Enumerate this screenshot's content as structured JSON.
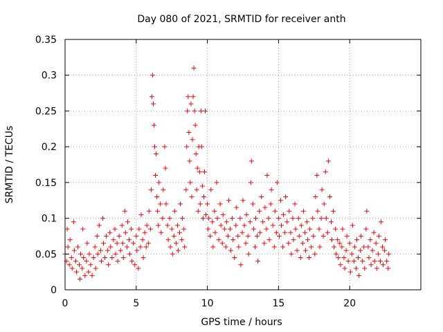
{
  "chart_data": {
    "type": "scatter",
    "title": "Day 080 of 2021, SRMTID for receiver anth",
    "xlabel": "GPS time / hours",
    "ylabel": "SRMTID / TECUs",
    "xlim": [
      0,
      25
    ],
    "ylim": [
      0,
      0.35
    ],
    "x_ticks": [
      0,
      5,
      10,
      15,
      20
    ],
    "y_ticks": [
      0,
      0.05,
      0.1,
      0.15,
      0.2,
      0.25,
      0.3,
      0.35
    ],
    "x_tick_labels": [
      "0",
      "5",
      "10",
      "15",
      "20"
    ],
    "y_tick_labels": [
      "0",
      "0.05",
      "0.1",
      "0.15",
      "0.2",
      "0.25",
      "0.3",
      "0.35"
    ],
    "grid": true,
    "marker": "+",
    "color": "#ff0000",
    "series": [
      {
        "name": "SRMTID",
        "points": [
          [
            0.0,
            0.05
          ],
          [
            0.1,
            0.04
          ],
          [
            0.15,
            0.085
          ],
          [
            0.2,
            0.06
          ],
          [
            0.3,
            0.035
          ],
          [
            0.35,
            0.07
          ],
          [
            0.45,
            0.045
          ],
          [
            0.5,
            0.03
          ],
          [
            0.6,
            0.095
          ],
          [
            0.65,
            0.055
          ],
          [
            0.75,
            0.04
          ],
          [
            0.8,
            0.025
          ],
          [
            0.9,
            0.06
          ],
          [
            1.0,
            0.035
          ],
          [
            1.05,
            0.015
          ],
          [
            1.1,
            0.05
          ],
          [
            1.2,
            0.03
          ],
          [
            1.25,
            0.085
          ],
          [
            1.3,
            0.045
          ],
          [
            1.4,
            0.02
          ],
          [
            1.5,
            0.04
          ],
          [
            1.55,
            0.065
          ],
          [
            1.65,
            0.025
          ],
          [
            1.7,
            0.05
          ],
          [
            1.8,
            0.035
          ],
          [
            1.9,
            0.02
          ],
          [
            2.0,
            0.045
          ],
          [
            2.1,
            0.06
          ],
          [
            2.15,
            0.03
          ],
          [
            2.25,
            0.075
          ],
          [
            2.3,
            0.05
          ],
          [
            2.4,
            0.09
          ],
          [
            2.5,
            0.055
          ],
          [
            2.55,
            0.04
          ],
          [
            2.65,
            0.1
          ],
          [
            2.7,
            0.065
          ],
          [
            2.8,
            0.045
          ],
          [
            2.9,
            0.075
          ],
          [
            3.0,
            0.055
          ],
          [
            3.05,
            0.035
          ],
          [
            3.15,
            0.08
          ],
          [
            3.2,
            0.06
          ],
          [
            3.3,
            0.045
          ],
          [
            3.4,
            0.07
          ],
          [
            3.5,
            0.085
          ],
          [
            3.55,
            0.05
          ],
          [
            3.65,
            0.065
          ],
          [
            3.7,
            0.04
          ],
          [
            3.8,
            0.075
          ],
          [
            3.9,
            0.055
          ],
          [
            4.0,
            0.09
          ],
          [
            4.05,
            0.065
          ],
          [
            4.1,
            0.045
          ],
          [
            4.2,
            0.11
          ],
          [
            4.25,
            0.08
          ],
          [
            4.35,
            0.06
          ],
          [
            4.4,
            0.095
          ],
          [
            4.5,
            0.07
          ],
          [
            4.55,
            0.05
          ],
          [
            4.65,
            0.085
          ],
          [
            4.7,
            0.04
          ],
          [
            4.8,
            0.065
          ],
          [
            4.9,
            0.035
          ],
          [
            5.0,
            0.075
          ],
          [
            5.05,
            0.055
          ],
          [
            5.15,
            0.03
          ],
          [
            5.2,
            0.085
          ],
          [
            5.3,
            0.06
          ],
          [
            5.35,
            0.105
          ],
          [
            5.45,
            0.07
          ],
          [
            5.5,
            0.045
          ],
          [
            5.6,
            0.08
          ],
          [
            5.7,
            0.06
          ],
          [
            5.75,
            0.09
          ],
          [
            5.85,
            0.065
          ],
          [
            5.9,
            0.11
          ],
          [
            6.0,
            0.085
          ],
          [
            6.05,
            0.14
          ],
          [
            6.1,
            0.27
          ],
          [
            6.15,
            0.3
          ],
          [
            6.2,
            0.26
          ],
          [
            6.25,
            0.23
          ],
          [
            6.3,
            0.2
          ],
          [
            6.35,
            0.16
          ],
          [
            6.4,
            0.19
          ],
          [
            6.45,
            0.13
          ],
          [
            6.5,
            0.11
          ],
          [
            6.55,
            0.09
          ],
          [
            6.6,
            0.15
          ],
          [
            6.7,
            0.12
          ],
          [
            6.75,
            0.08
          ],
          [
            6.85,
            0.1
          ],
          [
            6.9,
            0.14
          ],
          [
            7.0,
            0.2
          ],
          [
            7.05,
            0.17
          ],
          [
            7.1,
            0.12
          ],
          [
            7.2,
            0.09
          ],
          [
            7.25,
            0.07
          ],
          [
            7.35,
            0.1
          ],
          [
            7.4,
            0.06
          ],
          [
            7.5,
            0.085
          ],
          [
            7.55,
            0.05
          ],
          [
            7.65,
            0.075
          ],
          [
            7.7,
            0.11
          ],
          [
            7.8,
            0.065
          ],
          [
            7.9,
            0.09
          ],
          [
            7.95,
            0.055
          ],
          [
            8.05,
            0.08
          ],
          [
            8.1,
            0.12
          ],
          [
            8.2,
            0.07
          ],
          [
            8.25,
            0.1
          ],
          [
            8.35,
            0.085
          ],
          [
            8.4,
            0.06
          ],
          [
            8.5,
            0.14
          ],
          [
            8.55,
            0.2
          ],
          [
            8.6,
            0.25
          ],
          [
            8.65,
            0.27
          ],
          [
            8.7,
            0.22
          ],
          [
            8.75,
            0.18
          ],
          [
            8.8,
            0.15
          ],
          [
            8.85,
            0.26
          ],
          [
            8.9,
            0.13
          ],
          [
            8.95,
            0.21
          ],
          [
            9.0,
            0.27
          ],
          [
            9.05,
            0.31
          ],
          [
            9.1,
            0.25
          ],
          [
            9.15,
            0.23
          ],
          [
            9.2,
            0.19
          ],
          [
            9.25,
            0.14
          ],
          [
            9.3,
            0.17
          ],
          [
            9.35,
            0.11
          ],
          [
            9.4,
            0.2
          ],
          [
            9.45,
            0.165
          ],
          [
            9.5,
            0.12
          ],
          [
            9.55,
            0.25
          ],
          [
            9.6,
            0.2
          ],
          [
            9.65,
            0.145
          ],
          [
            9.7,
            0.1
          ],
          [
            9.75,
            0.13
          ],
          [
            9.8,
            0.165
          ],
          [
            9.85,
            0.25
          ],
          [
            9.9,
            0.105
          ],
          [
            10.0,
            0.12
          ],
          [
            10.05,
            0.085
          ],
          [
            10.1,
            0.1
          ],
          [
            10.2,
            0.075
          ],
          [
            10.25,
            0.14
          ],
          [
            10.35,
            0.095
          ],
          [
            10.4,
            0.06
          ],
          [
            10.5,
            0.11
          ],
          [
            10.55,
            0.08
          ],
          [
            10.65,
            0.15
          ],
          [
            10.7,
            0.1
          ],
          [
            10.8,
            0.07
          ],
          [
            10.9,
            0.12
          ],
          [
            10.95,
            0.09
          ],
          [
            11.05,
            0.065
          ],
          [
            11.1,
            0.105
          ],
          [
            11.2,
            0.085
          ],
          [
            11.3,
            0.06
          ],
          [
            11.35,
            0.095
          ],
          [
            11.45,
            0.075
          ],
          [
            11.5,
            0.125
          ],
          [
            11.6,
            0.085
          ],
          [
            11.65,
            0.055
          ],
          [
            11.75,
            0.1
          ],
          [
            11.8,
            0.07
          ],
          [
            11.9,
            0.045
          ],
          [
            12.0,
            0.09
          ],
          [
            12.05,
            0.115
          ],
          [
            12.15,
            0.075
          ],
          [
            12.2,
            0.06
          ],
          [
            12.3,
            0.1
          ],
          [
            12.35,
            0.035
          ],
          [
            12.45,
            0.08
          ],
          [
            12.5,
            0.125
          ],
          [
            12.6,
            0.09
          ],
          [
            12.7,
            0.065
          ],
          [
            12.75,
            0.105
          ],
          [
            12.85,
            0.075
          ],
          [
            12.9,
            0.05
          ],
          [
            13.0,
            0.095
          ],
          [
            13.05,
            0.15
          ],
          [
            13.1,
            0.18
          ],
          [
            13.2,
            0.12
          ],
          [
            13.25,
            0.085
          ],
          [
            13.35,
            0.06
          ],
          [
            13.4,
            0.1
          ],
          [
            13.5,
            0.075
          ],
          [
            13.55,
            0.04
          ],
          [
            13.65,
            0.11
          ],
          [
            13.7,
            0.08
          ],
          [
            13.8,
            0.13
          ],
          [
            13.9,
            0.095
          ],
          [
            14.0,
            0.065
          ],
          [
            14.05,
            0.115
          ],
          [
            14.15,
            0.085
          ],
          [
            14.2,
            0.16
          ],
          [
            14.3,
            0.1
          ],
          [
            14.35,
            0.07
          ],
          [
            14.45,
            0.12
          ],
          [
            14.5,
            0.14
          ],
          [
            14.6,
            0.09
          ],
          [
            14.7,
            0.06
          ],
          [
            14.75,
            0.11
          ],
          [
            14.85,
            0.08
          ],
          [
            14.9,
            0.15
          ],
          [
            15.0,
            0.1
          ],
          [
            15.05,
            0.075
          ],
          [
            15.15,
            0.125
          ],
          [
            15.2,
            0.09
          ],
          [
            15.3,
            0.06
          ],
          [
            15.35,
            0.105
          ],
          [
            15.45,
            0.08
          ],
          [
            15.5,
            0.13
          ],
          [
            15.6,
            0.095
          ],
          [
            15.7,
            0.065
          ],
          [
            15.75,
            0.11
          ],
          [
            15.85,
            0.08
          ],
          [
            15.9,
            0.05
          ],
          [
            16.0,
            0.1
          ],
          [
            16.05,
            0.07
          ],
          [
            16.15,
            0.12
          ],
          [
            16.2,
            0.085
          ],
          [
            16.3,
            0.055
          ],
          [
            16.4,
            0.1
          ],
          [
            16.45,
            0.075
          ],
          [
            16.55,
            0.045
          ],
          [
            16.6,
            0.09
          ],
          [
            16.7,
            0.065
          ],
          [
            16.75,
            0.11
          ],
          [
            16.85,
            0.08
          ],
          [
            16.9,
            0.055
          ],
          [
            17.0,
            0.095
          ],
          [
            17.05,
            0.07
          ],
          [
            17.15,
            0.045
          ],
          [
            17.2,
            0.085
          ],
          [
            17.3,
            0.06
          ],
          [
            17.4,
            0.1
          ],
          [
            17.45,
            0.075
          ],
          [
            17.55,
            0.05
          ],
          [
            17.6,
            0.13
          ],
          [
            17.7,
            0.16
          ],
          [
            17.75,
            0.11
          ],
          [
            17.85,
            0.085
          ],
          [
            17.9,
            0.06
          ],
          [
            18.0,
            0.1
          ],
          [
            18.05,
            0.14
          ],
          [
            18.15,
            0.075
          ],
          [
            18.2,
            0.12
          ],
          [
            18.3,
            0.165
          ],
          [
            18.35,
            0.1
          ],
          [
            18.45,
            0.08
          ],
          [
            18.5,
            0.18
          ],
          [
            18.6,
            0.13
          ],
          [
            18.7,
            0.095
          ],
          [
            18.75,
            0.07
          ],
          [
            18.85,
            0.11
          ],
          [
            18.9,
            0.06
          ],
          [
            19.0,
            0.085
          ],
          [
            19.05,
            0.05
          ],
          [
            19.15,
            0.07
          ],
          [
            19.2,
            0.045
          ],
          [
            19.3,
            0.065
          ],
          [
            19.35,
            0.035
          ],
          [
            19.45,
            0.06
          ],
          [
            19.5,
            0.085
          ],
          [
            19.6,
            0.045
          ],
          [
            19.65,
            0.03
          ],
          [
            19.75,
            0.055
          ],
          [
            19.8,
            0.075
          ],
          [
            19.9,
            0.04
          ],
          [
            20.0,
            0.065
          ],
          [
            20.05,
            0.025
          ],
          [
            20.15,
            0.05
          ],
          [
            20.2,
            0.09
          ],
          [
            20.3,
            0.04
          ],
          [
            20.35,
            0.06
          ],
          [
            20.45,
            0.03
          ],
          [
            20.5,
            0.07
          ],
          [
            20.6,
            0.045
          ],
          [
            20.65,
            0.02
          ],
          [
            20.75,
            0.055
          ],
          [
            20.8,
            0.075
          ],
          [
            20.9,
            0.04
          ],
          [
            21.0,
            0.06
          ],
          [
            21.05,
            0.03
          ],
          [
            21.15,
            0.085
          ],
          [
            21.2,
            0.11
          ],
          [
            21.3,
            0.06
          ],
          [
            21.35,
            0.045
          ],
          [
            21.45,
            0.07
          ],
          [
            21.5,
            0.035
          ],
          [
            21.6,
            0.055
          ],
          [
            21.7,
            0.08
          ],
          [
            21.75,
            0.04
          ],
          [
            21.85,
            0.065
          ],
          [
            21.9,
            0.03
          ],
          [
            22.0,
            0.05
          ],
          [
            22.05,
            0.075
          ],
          [
            22.15,
            0.04
          ],
          [
            22.2,
            0.095
          ],
          [
            22.3,
            0.06
          ],
          [
            22.35,
            0.035
          ],
          [
            22.45,
            0.055
          ],
          [
            22.5,
            0.07
          ],
          [
            22.6,
            0.04
          ],
          [
            22.7,
            0.03
          ],
          [
            22.75,
            0.05
          ]
        ]
      }
    ]
  }
}
